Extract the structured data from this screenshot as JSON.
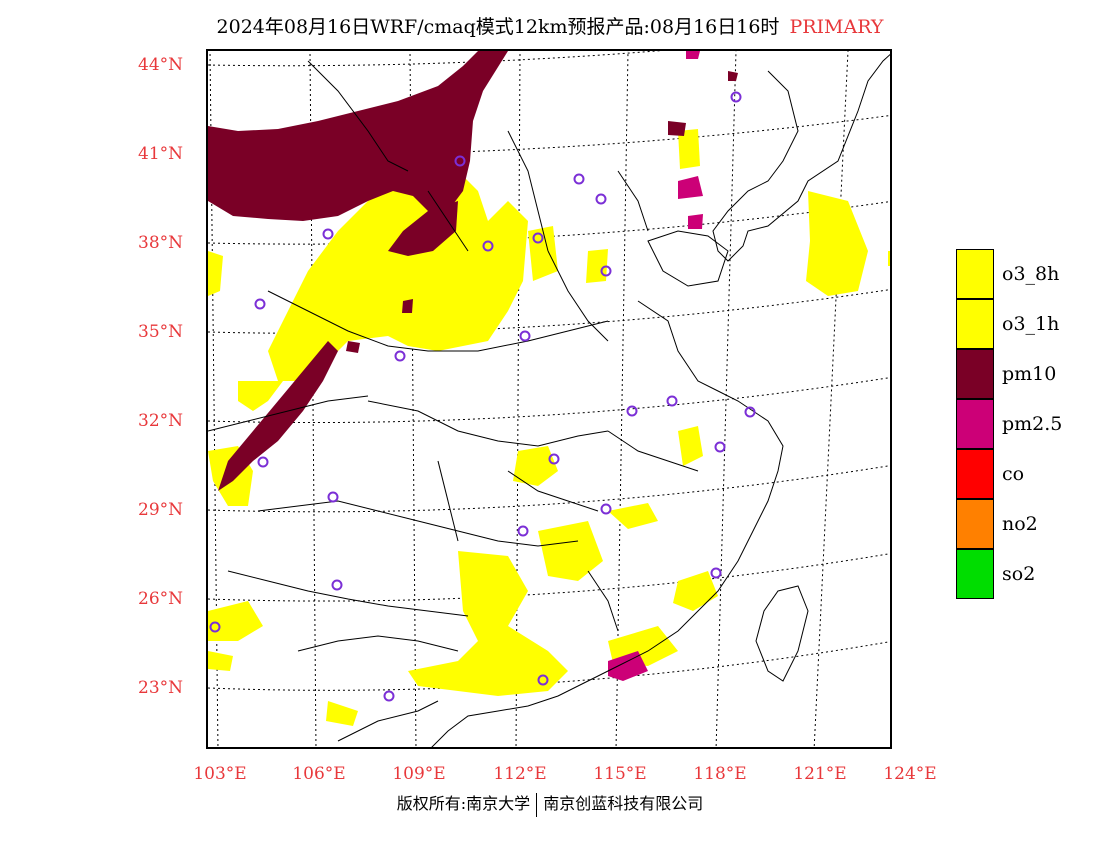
{
  "title": {
    "main": "2024年08月16日WRF/cmaq模式12km预报产品:08月16日16时",
    "tag": "PRIMARY"
  },
  "lat_labels": [
    "44°N",
    "41°N",
    "38°N",
    "35°N",
    "32°N",
    "29°N",
    "26°N",
    "23°N"
  ],
  "lon_labels": [
    "103°E",
    "106°E",
    "109°E",
    "112°E",
    "115°E",
    "118°E",
    "121°E",
    "124°E"
  ],
  "legend": [
    {
      "label": "o3_8h",
      "color": "#ffff00"
    },
    {
      "label": "o3_1h",
      "color": "#ffff00"
    },
    {
      "label": "pm10",
      "color": "#7a0026"
    },
    {
      "label": "pm2.5",
      "color": "#cc0077"
    },
    {
      "label": "co",
      "color": "#ff0000"
    },
    {
      "label": "no2",
      "color": "#ff8000"
    },
    {
      "label": "so2",
      "color": "#00dd00"
    }
  ],
  "footer": {
    "left": "版权所有:南京大学",
    "right": "南京创蓝科技有限公司"
  },
  "colors": {
    "axis_label": "#e8383b",
    "o3": "#ffff00",
    "pm10": "#7a0026",
    "pm25": "#cc0077",
    "station": "#7b2fd6"
  }
}
